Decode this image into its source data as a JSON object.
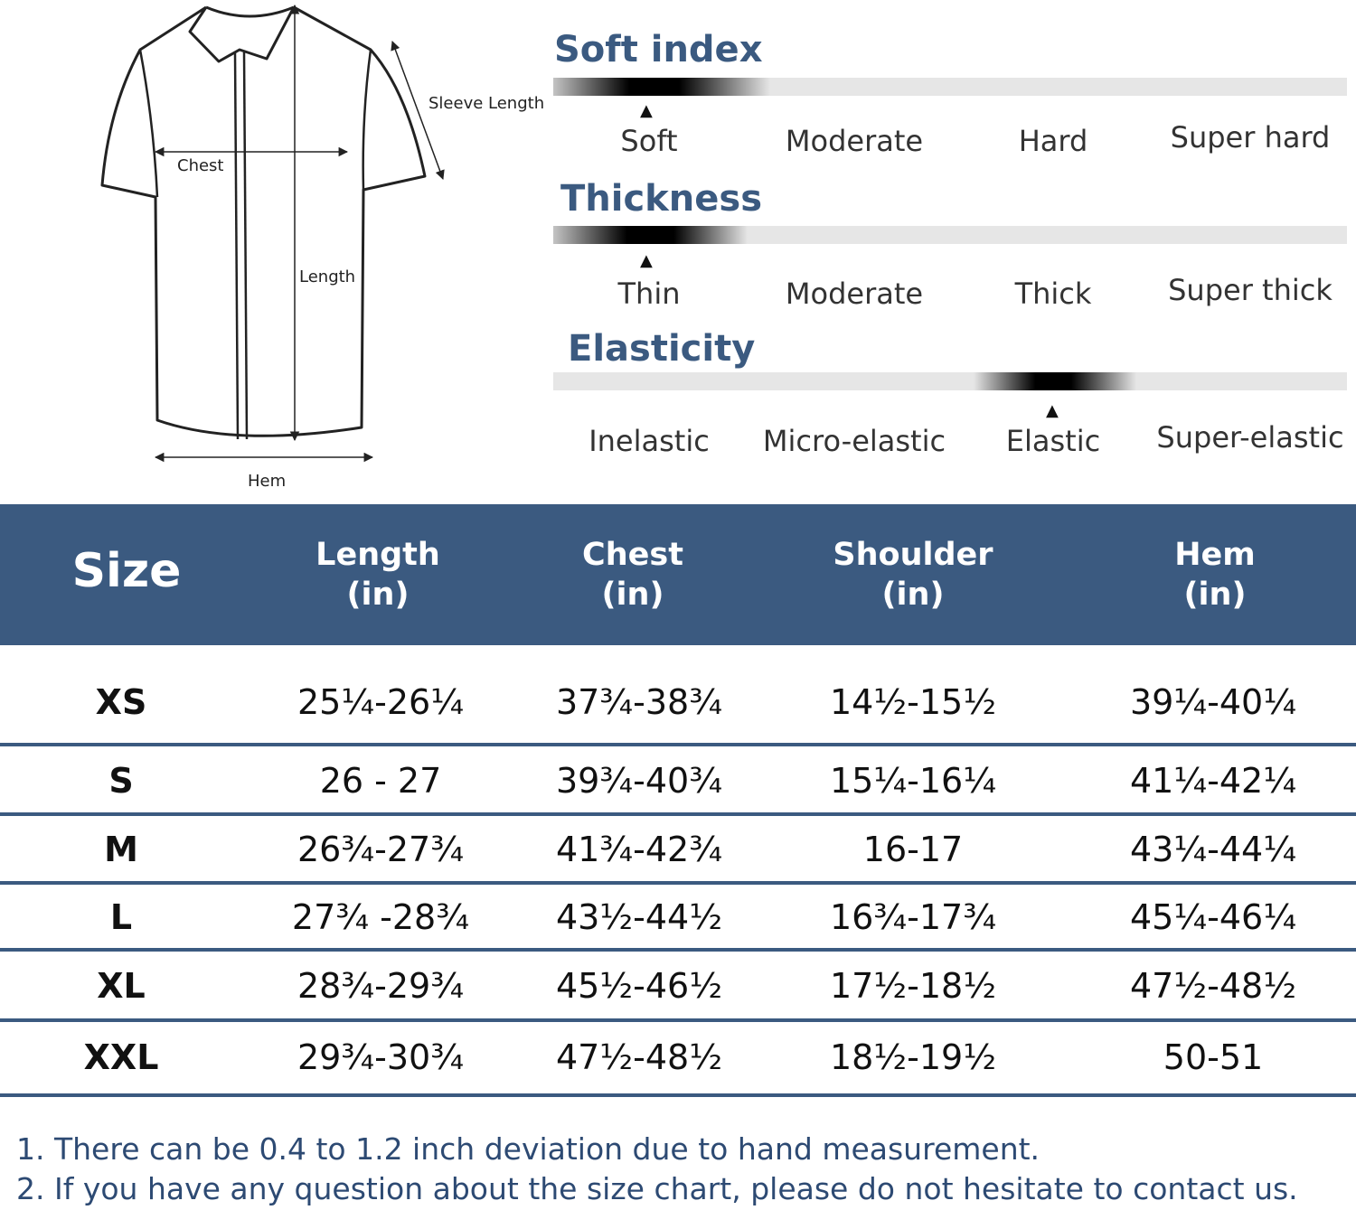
{
  "diagram": {
    "labels": {
      "sleeve_length": "Sleeve Length",
      "chest": "Chest",
      "length": "Length",
      "hem": "Hem"
    }
  },
  "scales": [
    {
      "title": "Soft index",
      "options": [
        "Soft",
        "Moderate",
        "Hard",
        "Super hard"
      ],
      "selected_index": 0
    },
    {
      "title": "Thickness",
      "options": [
        "Thin",
        "Moderate",
        "Thick",
        "Super thick"
      ],
      "selected_index": 0
    },
    {
      "title": "Elasticity",
      "options": [
        "Inelastic",
        "Micro-elastic",
        "Elastic",
        "Super-elastic"
      ],
      "selected_index": 2
    }
  ],
  "table": {
    "headers": {
      "size": "Size",
      "length": [
        "Length",
        "(in)"
      ],
      "chest": [
        "Chest",
        "(in)"
      ],
      "shoulder": [
        "Shoulder",
        "(in)"
      ],
      "hem": [
        "Hem",
        "(in)"
      ]
    },
    "rows": [
      {
        "size": "XS",
        "length": "25¼-26¼",
        "chest": "37¾-38¾",
        "shoulder": "14½-15½",
        "hem": "39¼-40¼"
      },
      {
        "size": "S",
        "length": "26 - 27",
        "chest": "39¾-40¾",
        "shoulder": "15¼-16¼",
        "hem": "41¼-42¼"
      },
      {
        "size": "M",
        "length": "26¾-27¾",
        "chest": "41¾-42¾",
        "shoulder": "16-17",
        "hem": "43¼-44¼"
      },
      {
        "size": "L",
        "length": "27¾ -28¾",
        "chest": "43½-44½",
        "shoulder": "16¾-17¾",
        "hem": "45¼-46¼"
      },
      {
        "size": "XL",
        "length": "28¾-29¾",
        "chest": "45½-46½",
        "shoulder": "17½-18½",
        "hem": "47½-48½"
      },
      {
        "size": "XXL",
        "length": "29¾-30¾",
        "chest": "47½-48½",
        "shoulder": "18½-19½",
        "hem": "50-51"
      }
    ]
  },
  "notes": [
    "1. There can be 0.4 to 1.2 inch deviation due to hand measurement.",
    "2. If you have any question about the size chart, please do not hesitate to contact us."
  ],
  "colors": {
    "accent": "#3b5a80",
    "bar": "#e6e6e6"
  }
}
